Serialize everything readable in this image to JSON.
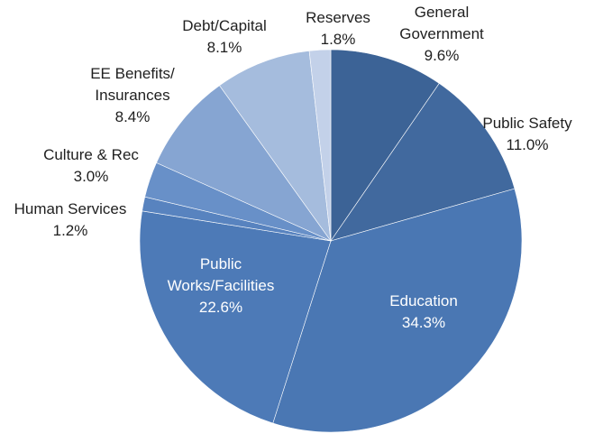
{
  "chart_data": {
    "type": "pie",
    "title": "",
    "start_angle_deg": 0,
    "direction": "clockwise",
    "slices": [
      {
        "label": "General\nGovernment",
        "value_text": "9.6%",
        "value": 9.6,
        "color": "#3c6396"
      },
      {
        "label": "Public Safety",
        "value_text": "11.0%",
        "value": 11.0,
        "color": "#41699e"
      },
      {
        "label": "Education",
        "value_text": "34.3%",
        "value": 34.3,
        "color": "#4a77b3"
      },
      {
        "label": "Public\nWorks/Facilities",
        "value_text": "22.6%",
        "value": 22.6,
        "color": "#4d7ab7"
      },
      {
        "label": "Human Services",
        "value_text": "1.2%",
        "value": 1.2,
        "color": "#5883bf"
      },
      {
        "label": "Culture & Rec",
        "value_text": "3.0%",
        "value": 3.0,
        "color": "#6890c8"
      },
      {
        "label": "EE Benefits/\nInsurances",
        "value_text": "8.4%",
        "value": 8.4,
        "color": "#86a5d2"
      },
      {
        "label": "Debt/Capital",
        "value_text": "8.1%",
        "value": 8.1,
        "color": "#a5bcdd"
      },
      {
        "label": "Reserves",
        "value_text": "1.8%",
        "value": 1.8,
        "color": "#c3d1e9"
      }
    ]
  }
}
